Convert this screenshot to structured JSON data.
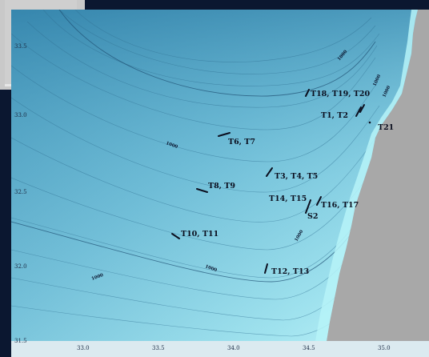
{
  "colors": {
    "land": "#a8a8a8",
    "sea_deep": "#5aa8c6",
    "sea_shallow": "#b6f3f8",
    "frame": "#0b1730"
  },
  "axes": {
    "x_ticks": [
      "33.0",
      "33.5",
      "34.0",
      "34.5",
      "35.0"
    ],
    "y_ticks": [
      "33.5",
      "33.0",
      "32.5",
      "32.0",
      "31.5"
    ]
  },
  "isobath_labels": [
    "1000",
    "1000",
    "1000",
    "1000",
    "1000",
    "1000",
    "1000",
    "1000"
  ],
  "stations": [
    {
      "label": "T18, T19, T20"
    },
    {
      "label": "T1, T2"
    },
    {
      "label": "T21"
    },
    {
      "label": "T6, T7"
    },
    {
      "label": "T3, T4, T5"
    },
    {
      "label": "T8, T9"
    },
    {
      "label": "T14, T15"
    },
    {
      "label": "T16, T17"
    },
    {
      "label": "S2"
    },
    {
      "label": "T10, T11"
    },
    {
      "label": "T12, T13"
    }
  ]
}
